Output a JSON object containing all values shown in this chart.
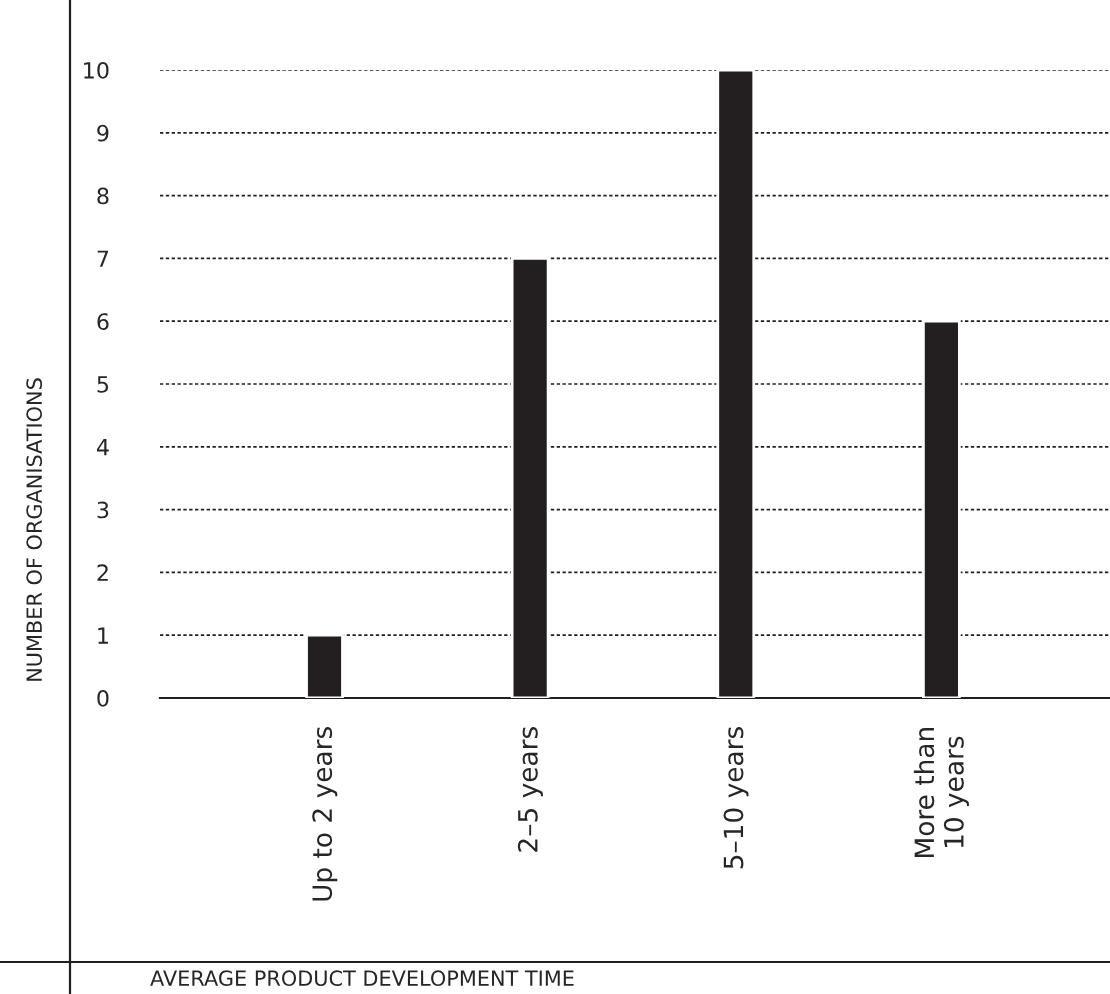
{
  "chart_data": {
    "type": "bar",
    "xlabel": "AVERAGE PRODUCT DEVELOPMENT TIME",
    "ylabel": "NUMBER OF ORGANISATIONS",
    "categories": [
      "Up to 2 years",
      "2–5 years",
      "5–10 years",
      "More than\n10 years"
    ],
    "values": [
      1,
      7,
      10,
      6
    ],
    "color": "#231f20",
    "ylim": [
      0,
      10
    ],
    "yticks": [
      0,
      1,
      2,
      3,
      4,
      5,
      6,
      7,
      8,
      9,
      10
    ],
    "grid": "y"
  }
}
